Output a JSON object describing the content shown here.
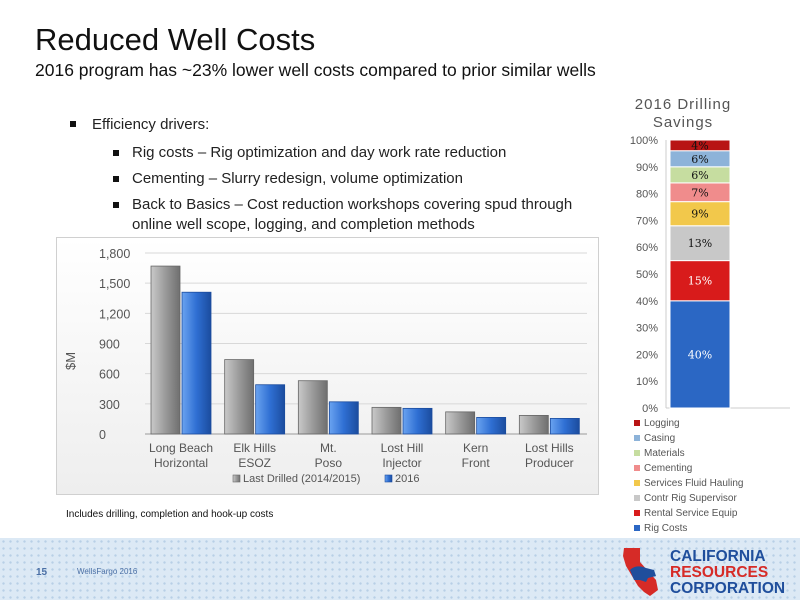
{
  "slide": {
    "title": "Reduced Well Costs",
    "subtitle": "2016 program has ~23% lower well costs compared to prior similar wells",
    "bullets": {
      "main": "Efficiency drivers:",
      "items": [
        "Rig costs – Rig optimization and day work rate reduction",
        "Cementing – Slurry redesign, volume optimization",
        "Back to Basics – Cost reduction workshops covering spud through online well scope, logging, and completion methods"
      ]
    },
    "footnote": "Includes drilling, completion and hook-up costs",
    "page_number": "15",
    "footer_event": "WellsFargo 2016",
    "logo": {
      "line1": "CALIFORNIA",
      "line2": "RESOURCES",
      "line3": "CORPORATION"
    }
  },
  "chart_data": [
    {
      "type": "bar",
      "categories": [
        "Long Beach Horizontal",
        "Elk Hills ESOZ",
        "Mt. Poso",
        "Lost Hill Injector",
        "Kern Front",
        "Lost Hills Producer"
      ],
      "series": [
        {
          "name": "Last Drilled (2014/2015)",
          "values": [
            1670,
            740,
            530,
            265,
            220,
            185
          ]
        },
        {
          "name": "2016",
          "values": [
            1410,
            490,
            320,
            255,
            165,
            155
          ]
        }
      ],
      "ylabel": "$M",
      "ylim": [
        0,
        1800
      ],
      "yticks": [
        0,
        300,
        600,
        900,
        1200,
        1500,
        1800
      ],
      "ytick_labels": [
        "0",
        "300",
        "600",
        "900",
        "1,200",
        "1,500",
        "1,800"
      ],
      "grid": true,
      "legend": "bottom",
      "colors": {
        "last": "#9a9a9a",
        "y2016": "#2f6fd3"
      }
    },
    {
      "type": "bar",
      "stacked": true,
      "title": "2016 Drilling Savings",
      "ylim": [
        0,
        100
      ],
      "yticks": [
        0,
        10,
        20,
        30,
        40,
        50,
        60,
        70,
        80,
        90,
        100
      ],
      "ytick_labels": [
        "0%",
        "10%",
        "20%",
        "30%",
        "40%",
        "50%",
        "60%",
        "70%",
        "80%",
        "90%",
        "100%"
      ],
      "segments": [
        {
          "name": "Rig Costs",
          "value": 40,
          "label": "40%",
          "color": "#2b67c4",
          "label_color": "#ffffff"
        },
        {
          "name": "Rental Service Equip",
          "value": 15,
          "label": "15%",
          "color": "#d81b1b",
          "label_color": "#ffffff"
        },
        {
          "name": "Contr Rig Supervisor",
          "value": 13,
          "label": "13%",
          "color": "#c8c8c8",
          "label_color": "#111111"
        },
        {
          "name": "Services Fluid Hauling",
          "value": 9,
          "label": "9%",
          "color": "#f2c84b",
          "label_color": "#111111"
        },
        {
          "name": "Cementing",
          "value": 7,
          "label": "7%",
          "color": "#f08c8c",
          "label_color": "#111111"
        },
        {
          "name": "Materials",
          "value": 6,
          "label": "6%",
          "color": "#c6dda0",
          "label_color": "#111111"
        },
        {
          "name": "Casing",
          "value": 6,
          "label": "6%",
          "color": "#8db3d9",
          "label_color": "#111111"
        },
        {
          "name": "Logging",
          "value": 4,
          "label": "4%",
          "color": "#b81414",
          "label_color": "#111111"
        }
      ],
      "legend_order": [
        "Logging",
        "Casing",
        "Materials",
        "Cementing",
        "Services Fluid Hauling",
        "Contr Rig Supervisor",
        "Rental Service Equip",
        "Rig Costs"
      ],
      "legend": "bottom"
    }
  ]
}
